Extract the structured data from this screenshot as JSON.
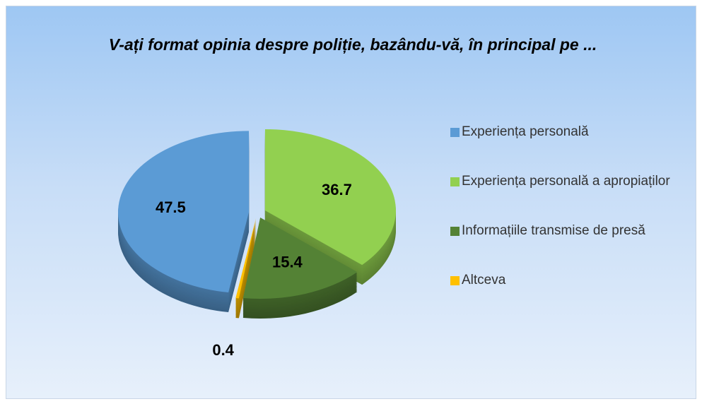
{
  "chart_data": {
    "type": "pie",
    "title": "V-ați format opinia despre poliție, bazându-vă, în principal pe ...",
    "categories": [
      "Experiența personală",
      "Experiența personală a apropiaților",
      "Informațiile transmise de presă",
      "Altceva"
    ],
    "values": [
      47.5,
      36.7,
      15.4,
      0.4
    ],
    "colors": [
      "#5b9bd5",
      "#92d050",
      "#548235",
      "#ffc000"
    ],
    "legend": "right"
  }
}
